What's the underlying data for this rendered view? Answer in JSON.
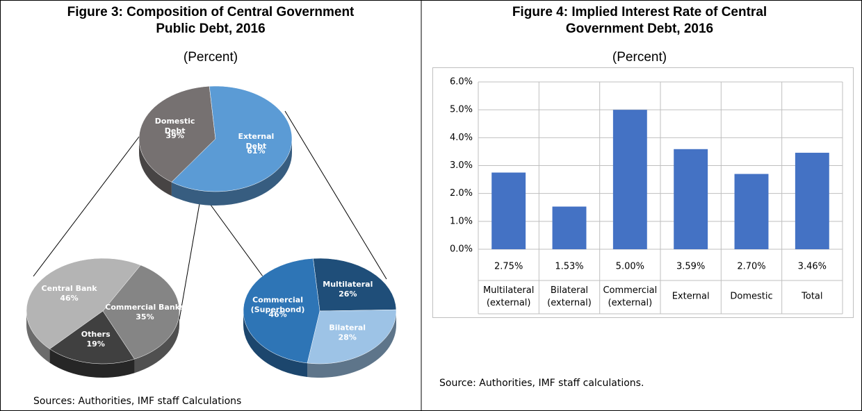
{
  "chart_data": [
    {
      "type": "pie",
      "title": "Figure 3: Composition of Central Government Public Debt, 2016",
      "subtitle": "(Percent)",
      "source": "Sources: Authorities, IMF staff Calculations",
      "pies": [
        {
          "categories": [
            "Domestic Debt",
            "External Debt"
          ],
          "values": [
            39,
            61
          ],
          "value_labels": [
            "39%",
            "61%"
          ],
          "colors": [
            "#767171",
            "#5b9bd5"
          ]
        },
        {
          "categories": [
            "Central Bank",
            "Commercial Banks",
            "Others"
          ],
          "values": [
            46,
            35,
            19
          ],
          "value_labels": [
            "46%",
            "35%",
            "19%"
          ],
          "colors": [
            "#b4b4b4",
            "#858585",
            "#404040"
          ]
        },
        {
          "categories": [
            "Multilateral",
            "Bilateral",
            "Commercial (Superbond)"
          ],
          "values": [
            26,
            28,
            46
          ],
          "value_labels": [
            "26%",
            "28%",
            "46%"
          ],
          "colors": [
            "#1f4e79",
            "#9dc3e6",
            "#2e75b6"
          ]
        }
      ]
    },
    {
      "type": "bar",
      "title": "Figure 4: Implied Interest Rate of Central Government Debt, 2016",
      "subtitle": "(Percent)",
      "source": "Source: Authorities, IMF staff calculations.",
      "categories": [
        "Multilateral (external)",
        "Bilateral (external)",
        "Commercial (external)",
        "External",
        "Domestic",
        "Total"
      ],
      "values": [
        2.75,
        1.53,
        5.0,
        3.59,
        2.7,
        3.46
      ],
      "value_labels": [
        "2.75%",
        "1.53%",
        "5.00%",
        "3.59%",
        "2.70%",
        "3.46%"
      ],
      "color": "#4472c4",
      "ylim": [
        0,
        6
      ],
      "yticks": [
        {
          "value": 0,
          "label": "0.0%"
        },
        {
          "value": 1,
          "label": "1.0%"
        },
        {
          "value": 2,
          "label": "2.0%"
        },
        {
          "value": 3,
          "label": "3.0%"
        },
        {
          "value": 4,
          "label": "4.0%"
        },
        {
          "value": 5,
          "label": "5.0%"
        },
        {
          "value": 6,
          "label": "6.0%"
        }
      ],
      "grid": true
    }
  ]
}
